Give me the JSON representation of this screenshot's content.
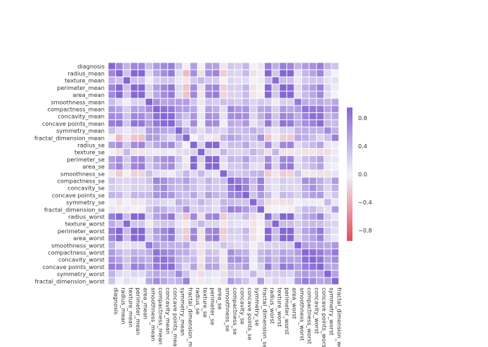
{
  "chart_data": {
    "type": "heatmap",
    "title": "",
    "xlabel": "",
    "ylabel": "",
    "labels": [
      "diagnosis",
      "radius_mean",
      "texture_mean",
      "perimeter_mean",
      "area_mean",
      "smoothness_mean",
      "compactness_mean",
      "concavity_mean",
      "concave points_mean",
      "symmetry_mean",
      "fractal_dimension_mean",
      "radius_se",
      "texture_se",
      "perimeter_se",
      "area_se",
      "smoothness_se",
      "compactness_se",
      "concavity_se",
      "concave points_se",
      "symmetry_se",
      "fractal_dimension_se",
      "radius_worst",
      "texture_worst",
      "perimeter_worst",
      "area_worst",
      "smoothness_worst",
      "compactness_worst",
      "concavity_worst",
      "concave points_worst",
      "symmetry_worst",
      "fractal_dimension_worst"
    ],
    "matrix": [
      [
        1.0,
        0.73,
        0.42,
        0.74,
        0.71,
        0.36,
        0.6,
        0.7,
        0.78,
        0.33,
        -0.01,
        0.57,
        -0.01,
        0.56,
        0.55,
        -0.07,
        0.29,
        0.25,
        0.41,
        -0.01,
        0.08,
        0.78,
        0.46,
        0.78,
        0.73,
        0.42,
        0.59,
        0.66,
        0.79,
        0.42,
        0.32
      ],
      [
        0.73,
        1.0,
        0.32,
        1.0,
        0.99,
        0.17,
        0.51,
        0.68,
        0.82,
        0.15,
        -0.31,
        0.68,
        -0.1,
        0.67,
        0.74,
        -0.22,
        0.21,
        0.19,
        0.38,
        -0.1,
        -0.04,
        0.97,
        0.3,
        0.97,
        0.94,
        0.12,
        0.41,
        0.53,
        0.74,
        0.16,
        0.01
      ],
      [
        0.42,
        0.32,
        1.0,
        0.33,
        0.32,
        -0.02,
        0.24,
        0.3,
        0.29,
        0.07,
        -0.08,
        0.28,
        0.39,
        0.28,
        0.26,
        0.01,
        0.19,
        0.14,
        0.16,
        0.01,
        0.05,
        0.35,
        0.91,
        0.36,
        0.34,
        0.08,
        0.28,
        0.3,
        0.3,
        0.11,
        0.12
      ],
      [
        0.74,
        1.0,
        0.33,
        1.0,
        0.99,
        0.21,
        0.56,
        0.72,
        0.85,
        0.18,
        -0.26,
        0.69,
        -0.09,
        0.69,
        0.74,
        -0.2,
        0.25,
        0.23,
        0.41,
        -0.08,
        -0.01,
        0.97,
        0.3,
        0.97,
        0.94,
        0.15,
        0.46,
        0.56,
        0.77,
        0.19,
        0.05
      ],
      [
        0.71,
        0.99,
        0.32,
        0.99,
        1.0,
        0.18,
        0.5,
        0.69,
        0.82,
        0.15,
        -0.28,
        0.73,
        -0.07,
        0.73,
        0.8,
        -0.17,
        0.21,
        0.21,
        0.37,
        -0.07,
        -0.02,
        0.96,
        0.29,
        0.96,
        0.96,
        0.12,
        0.39,
        0.51,
        0.72,
        0.14,
        0.0
      ],
      [
        0.36,
        0.17,
        -0.02,
        0.21,
        0.18,
        1.0,
        0.66,
        0.52,
        0.55,
        0.56,
        0.58,
        0.3,
        0.07,
        0.3,
        0.25,
        0.33,
        0.32,
        0.25,
        0.38,
        0.2,
        0.28,
        0.21,
        0.04,
        0.24,
        0.21,
        0.81,
        0.47,
        0.43,
        0.5,
        0.39,
        0.5
      ],
      [
        0.6,
        0.51,
        0.24,
        0.56,
        0.5,
        0.66,
        1.0,
        0.88,
        0.83,
        0.6,
        0.57,
        0.5,
        0.05,
        0.55,
        0.46,
        0.14,
        0.74,
        0.57,
        0.64,
        0.23,
        0.51,
        0.54,
        0.25,
        0.59,
        0.51,
        0.57,
        0.87,
        0.82,
        0.82,
        0.51,
        0.69
      ],
      [
        0.7,
        0.68,
        0.3,
        0.72,
        0.69,
        0.52,
        0.88,
        1.0,
        0.92,
        0.5,
        0.34,
        0.63,
        0.08,
        0.66,
        0.62,
        0.1,
        0.67,
        0.69,
        0.68,
        0.18,
        0.45,
        0.69,
        0.3,
        0.73,
        0.68,
        0.45,
        0.75,
        0.88,
        0.86,
        0.41,
        0.51
      ],
      [
        0.78,
        0.82,
        0.29,
        0.85,
        0.82,
        0.55,
        0.83,
        0.92,
        1.0,
        0.46,
        0.17,
        0.7,
        0.02,
        0.71,
        0.69,
        0.03,
        0.49,
        0.44,
        0.62,
        0.1,
        0.26,
        0.83,
        0.29,
        0.86,
        0.81,
        0.45,
        0.67,
        0.75,
        0.91,
        0.38,
        0.37
      ],
      [
        0.33,
        0.15,
        0.07,
        0.18,
        0.15,
        0.56,
        0.6,
        0.5,
        0.46,
        1.0,
        0.48,
        0.3,
        0.13,
        0.31,
        0.22,
        0.19,
        0.42,
        0.34,
        0.39,
        0.45,
        0.33,
        0.19,
        0.09,
        0.22,
        0.18,
        0.43,
        0.47,
        0.43,
        0.43,
        0.7,
        0.44
      ],
      [
        -0.01,
        -0.31,
        -0.08,
        -0.26,
        -0.28,
        0.58,
        0.57,
        0.34,
        0.17,
        0.48,
        1.0,
        0.0,
        0.16,
        0.04,
        -0.09,
        0.4,
        0.56,
        0.45,
        0.34,
        0.35,
        0.69,
        -0.25,
        -0.05,
        -0.21,
        -0.23,
        0.5,
        0.46,
        0.35,
        0.18,
        0.33,
        0.77
      ],
      [
        0.57,
        0.68,
        0.28,
        0.69,
        0.73,
        0.3,
        0.5,
        0.63,
        0.7,
        0.3,
        0.0,
        1.0,
        0.21,
        0.97,
        0.95,
        0.16,
        0.36,
        0.33,
        0.51,
        0.24,
        0.23,
        0.72,
        0.19,
        0.72,
        0.75,
        0.14,
        0.29,
        0.38,
        0.53,
        0.09,
        0.05
      ],
      [
        -0.01,
        -0.1,
        0.39,
        -0.09,
        -0.07,
        0.07,
        0.05,
        0.08,
        0.02,
        0.13,
        0.16,
        0.21,
        1.0,
        0.22,
        0.11,
        0.4,
        0.23,
        0.19,
        0.23,
        0.41,
        0.28,
        -0.11,
        0.41,
        -0.1,
        -0.08,
        -0.07,
        -0.09,
        -0.07,
        -0.12,
        -0.13,
        -0.05
      ],
      [
        0.56,
        0.67,
        0.28,
        0.69,
        0.73,
        0.3,
        0.55,
        0.66,
        0.71,
        0.31,
        0.04,
        0.97,
        0.22,
        1.0,
        0.94,
        0.15,
        0.42,
        0.36,
        0.56,
        0.27,
        0.24,
        0.7,
        0.2,
        0.72,
        0.73,
        0.13,
        0.34,
        0.42,
        0.55,
        0.11,
        0.09
      ],
      [
        0.55,
        0.74,
        0.26,
        0.74,
        0.8,
        0.25,
        0.46,
        0.62,
        0.69,
        0.22,
        -0.09,
        0.95,
        0.11,
        0.94,
        1.0,
        0.08,
        0.28,
        0.27,
        0.42,
        0.13,
        0.13,
        0.76,
        0.2,
        0.76,
        0.81,
        0.13,
        0.28,
        0.39,
        0.54,
        0.07,
        0.02
      ],
      [
        -0.07,
        -0.22,
        0.01,
        -0.2,
        -0.17,
        0.33,
        0.14,
        0.1,
        0.03,
        0.19,
        0.4,
        0.16,
        0.4,
        0.15,
        0.08,
        1.0,
        0.34,
        0.27,
        0.33,
        0.41,
        0.43,
        -0.23,
        -0.07,
        -0.22,
        -0.18,
        0.31,
        -0.06,
        -0.06,
        -0.1,
        -0.11,
        0.1
      ],
      [
        0.29,
        0.21,
        0.19,
        0.25,
        0.21,
        0.32,
        0.74,
        0.67,
        0.49,
        0.42,
        0.56,
        0.36,
        0.23,
        0.42,
        0.28,
        0.34,
        1.0,
        0.8,
        0.74,
        0.39,
        0.8,
        0.2,
        0.14,
        0.26,
        0.2,
        0.23,
        0.68,
        0.64,
        0.48,
        0.28,
        0.59
      ],
      [
        0.25,
        0.19,
        0.14,
        0.23,
        0.21,
        0.25,
        0.57,
        0.69,
        0.44,
        0.34,
        0.45,
        0.33,
        0.19,
        0.36,
        0.27,
        0.27,
        0.8,
        1.0,
        0.77,
        0.31,
        0.73,
        0.19,
        0.1,
        0.23,
        0.19,
        0.17,
        0.48,
        0.66,
        0.44,
        0.2,
        0.44
      ],
      [
        0.41,
        0.38,
        0.16,
        0.41,
        0.37,
        0.38,
        0.64,
        0.68,
        0.62,
        0.39,
        0.34,
        0.51,
        0.23,
        0.56,
        0.42,
        0.33,
        0.74,
        0.77,
        1.0,
        0.31,
        0.61,
        0.36,
        0.09,
        0.39,
        0.34,
        0.22,
        0.45,
        0.55,
        0.6,
        0.14,
        0.31
      ],
      [
        -0.01,
        -0.1,
        0.01,
        -0.08,
        -0.07,
        0.2,
        0.23,
        0.18,
        0.1,
        0.45,
        0.35,
        0.24,
        0.41,
        0.27,
        0.13,
        0.41,
        0.39,
        0.31,
        0.31,
        1.0,
        0.37,
        -0.13,
        -0.08,
        -0.1,
        -0.11,
        -0.01,
        0.06,
        0.04,
        -0.03,
        0.39,
        0.08
      ],
      [
        0.08,
        -0.04,
        0.05,
        -0.01,
        -0.02,
        0.28,
        0.51,
        0.45,
        0.26,
        0.33,
        0.69,
        0.23,
        0.28,
        0.24,
        0.13,
        0.43,
        0.8,
        0.73,
        0.61,
        0.37,
        1.0,
        -0.04,
        -0.0,
        -0.0,
        -0.02,
        0.17,
        0.39,
        0.38,
        0.22,
        0.11,
        0.59
      ],
      [
        0.78,
        0.97,
        0.35,
        0.97,
        0.96,
        0.21,
        0.54,
        0.69,
        0.83,
        0.19,
        -0.25,
        0.72,
        -0.11,
        0.7,
        0.76,
        -0.23,
        0.2,
        0.19,
        0.36,
        -0.13,
        -0.04,
        1.0,
        0.36,
        0.99,
        0.98,
        0.22,
        0.48,
        0.57,
        0.79,
        0.24,
        0.09
      ],
      [
        0.46,
        0.3,
        0.91,
        0.3,
        0.29,
        0.04,
        0.25,
        0.3,
        0.29,
        0.09,
        -0.05,
        0.19,
        0.41,
        0.2,
        0.2,
        -0.07,
        0.14,
        0.1,
        0.09,
        -0.08,
        -0.0,
        0.36,
        1.0,
        0.37,
        0.35,
        0.23,
        0.36,
        0.37,
        0.36,
        0.23,
        0.22
      ],
      [
        0.78,
        0.97,
        0.36,
        0.97,
        0.96,
        0.24,
        0.59,
        0.73,
        0.86,
        0.22,
        -0.21,
        0.72,
        -0.1,
        0.72,
        0.76,
        -0.22,
        0.26,
        0.23,
        0.39,
        -0.1,
        -0.0,
        0.99,
        0.37,
        1.0,
        0.98,
        0.24,
        0.53,
        0.62,
        0.82,
        0.27,
        0.14
      ],
      [
        0.73,
        0.94,
        0.34,
        0.94,
        0.96,
        0.21,
        0.51,
        0.68,
        0.81,
        0.18,
        -0.23,
        0.75,
        -0.08,
        0.73,
        0.81,
        -0.18,
        0.2,
        0.19,
        0.34,
        -0.11,
        -0.02,
        0.98,
        0.35,
        0.98,
        1.0,
        0.21,
        0.44,
        0.54,
        0.75,
        0.21,
        0.08
      ],
      [
        0.42,
        0.12,
        0.08,
        0.15,
        0.12,
        0.81,
        0.57,
        0.45,
        0.45,
        0.43,
        0.5,
        0.14,
        -0.07,
        0.13,
        0.13,
        0.31,
        0.23,
        0.17,
        0.22,
        -0.01,
        0.17,
        0.22,
        0.23,
        0.24,
        0.21,
        1.0,
        0.57,
        0.52,
        0.55,
        0.49,
        0.62
      ],
      [
        0.59,
        0.41,
        0.28,
        0.46,
        0.39,
        0.47,
        0.87,
        0.75,
        0.67,
        0.47,
        0.46,
        0.29,
        -0.09,
        0.34,
        0.28,
        -0.06,
        0.68,
        0.48,
        0.45,
        0.06,
        0.39,
        0.48,
        0.36,
        0.53,
        0.44,
        0.57,
        1.0,
        0.89,
        0.8,
        0.61,
        0.81
      ],
      [
        0.66,
        0.53,
        0.3,
        0.56,
        0.51,
        0.43,
        0.82,
        0.88,
        0.75,
        0.43,
        0.35,
        0.38,
        -0.07,
        0.42,
        0.39,
        -0.06,
        0.64,
        0.66,
        0.55,
        0.04,
        0.38,
        0.57,
        0.37,
        0.62,
        0.54,
        0.52,
        0.89,
        1.0,
        0.86,
        0.53,
        0.69
      ],
      [
        0.79,
        0.74,
        0.3,
        0.77,
        0.72,
        0.5,
        0.82,
        0.86,
        0.91,
        0.43,
        0.18,
        0.53,
        -0.12,
        0.55,
        0.54,
        -0.1,
        0.48,
        0.44,
        0.6,
        -0.03,
        0.22,
        0.79,
        0.36,
        0.82,
        0.75,
        0.55,
        0.8,
        0.86,
        1.0,
        0.5,
        0.51
      ],
      [
        0.42,
        0.16,
        0.11,
        0.19,
        0.14,
        0.39,
        0.51,
        0.41,
        0.38,
        0.7,
        0.33,
        0.09,
        -0.13,
        0.11,
        0.07,
        -0.11,
        0.28,
        0.2,
        0.14,
        0.39,
        0.11,
        0.24,
        0.23,
        0.27,
        0.21,
        0.49,
        0.61,
        0.53,
        0.5,
        1.0,
        0.54
      ],
      [
        0.32,
        0.01,
        0.12,
        0.05,
        0.0,
        0.5,
        0.69,
        0.51,
        0.37,
        0.44,
        0.77,
        0.05,
        -0.05,
        0.09,
        0.02,
        0.1,
        0.59,
        0.44,
        0.31,
        0.08,
        0.59,
        0.09,
        0.22,
        0.14,
        0.08,
        0.62,
        0.81,
        0.69,
        0.51,
        0.54,
        1.0
      ]
    ],
    "zlim": [
      -0.95,
      0.95
    ],
    "colorscale": {
      "low": "#e34b5a",
      "mid": "#f2f2f8",
      "high": "#8666d4"
    },
    "colorbar_ticks": [
      0.8,
      0.4,
      0.0,
      -0.4,
      -0.8
    ],
    "colorbar_tick_labels": [
      "0.8",
      "0.4",
      "0.0",
      "−0.4",
      "−0.8"
    ],
    "legend": "colorbar-right",
    "grid": false
  }
}
